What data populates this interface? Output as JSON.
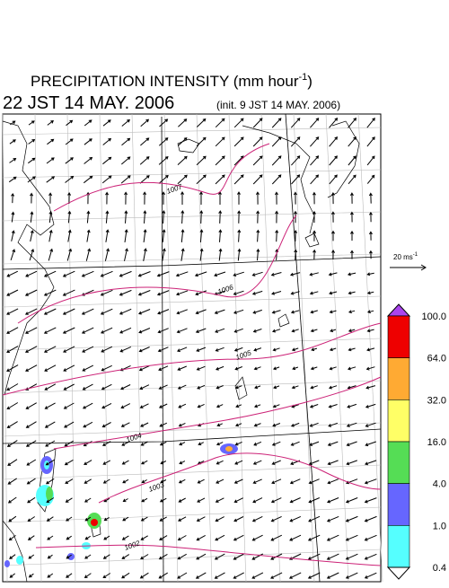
{
  "header": {
    "title": "PRECIPITATION INTENSITY (mm hour",
    "title_sup": "-1",
    "title_end": ")",
    "valid_time": "22 JST 14 MAY. 2006",
    "init_time": "(init. 9 JST 14 MAY. 2006)"
  },
  "reference_vector": {
    "label": "20 ms",
    "sup": "-1"
  },
  "colorbar": {
    "labels": [
      "100.0",
      "64.0",
      "32.0",
      "16.0",
      "4.0",
      "1.0",
      "0.4"
    ],
    "colors": [
      "#ee0000",
      "#ffaa33",
      "#ffff66",
      "#55dd55",
      "#6666ff",
      "#55ffff"
    ],
    "over_color": "#aa44ee",
    "under_color": "#ffffff"
  },
  "isobars": [
    1007,
    1006,
    1005,
    1004,
    1003,
    1002
  ],
  "isobar_color": "#cc2277"
}
